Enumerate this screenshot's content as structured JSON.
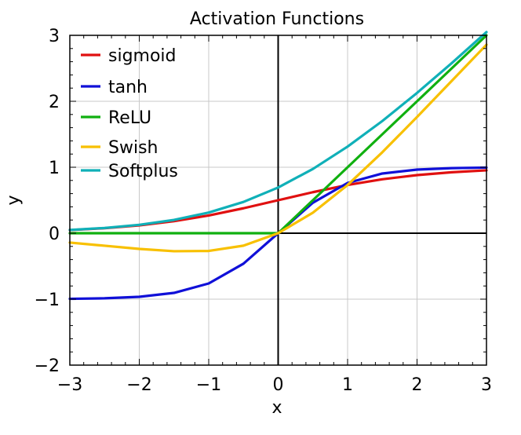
{
  "chart_data": {
    "type": "line",
    "title": "Activation Functions",
    "xlabel": "x",
    "ylabel": "y",
    "xlim": [
      -3,
      3
    ],
    "ylim": [
      -2,
      3
    ],
    "grid": true,
    "legend_position": "top-left",
    "x_ticks": [
      {
        "value": -3,
        "label": "−3"
      },
      {
        "value": -2,
        "label": "−2"
      },
      {
        "value": -1,
        "label": "−1"
      },
      {
        "value": 0,
        "label": "0"
      },
      {
        "value": 1,
        "label": "1"
      },
      {
        "value": 2,
        "label": "2"
      },
      {
        "value": 3,
        "label": "3"
      }
    ],
    "y_ticks": [
      {
        "value": -2,
        "label": "−2"
      },
      {
        "value": -1,
        "label": "−1"
      },
      {
        "value": 0,
        "label": "0"
      },
      {
        "value": 1,
        "label": "1"
      },
      {
        "value": 2,
        "label": "2"
      },
      {
        "value": 3,
        "label": "3"
      }
    ],
    "x": [
      -3,
      -2.5,
      -2,
      -1.5,
      -1,
      -0.5,
      0,
      0.5,
      1,
      1.5,
      2,
      2.5,
      3
    ],
    "series": [
      {
        "name": "sigmoid",
        "color": "#e01010",
        "values": [
          0.047,
          0.076,
          0.119,
          0.182,
          0.269,
          0.378,
          0.5,
          0.622,
          0.731,
          0.818,
          0.881,
          0.924,
          0.953
        ]
      },
      {
        "name": "tanh",
        "color": "#1010d8",
        "values": [
          -0.995,
          -0.987,
          -0.964,
          -0.905,
          -0.762,
          -0.462,
          0,
          0.462,
          0.762,
          0.905,
          0.964,
          0.987,
          0.995
        ]
      },
      {
        "name": "ReLU",
        "color": "#10b010",
        "values": [
          0,
          0,
          0,
          0,
          0,
          0,
          0,
          0.5,
          1,
          1.5,
          2,
          2.5,
          3
        ]
      },
      {
        "name": "Swish",
        "color": "#f8c000",
        "values": [
          -0.142,
          -0.19,
          -0.238,
          -0.273,
          -0.269,
          -0.189,
          0,
          0.311,
          0.731,
          1.227,
          1.762,
          2.31,
          2.858
        ]
      },
      {
        "name": "Softplus",
        "color": "#10b0b8",
        "values": [
          0.049,
          0.079,
          0.127,
          0.201,
          0.313,
          0.474,
          0.693,
          0.974,
          1.313,
          1.701,
          2.127,
          2.579,
          3.049
        ]
      }
    ]
  }
}
